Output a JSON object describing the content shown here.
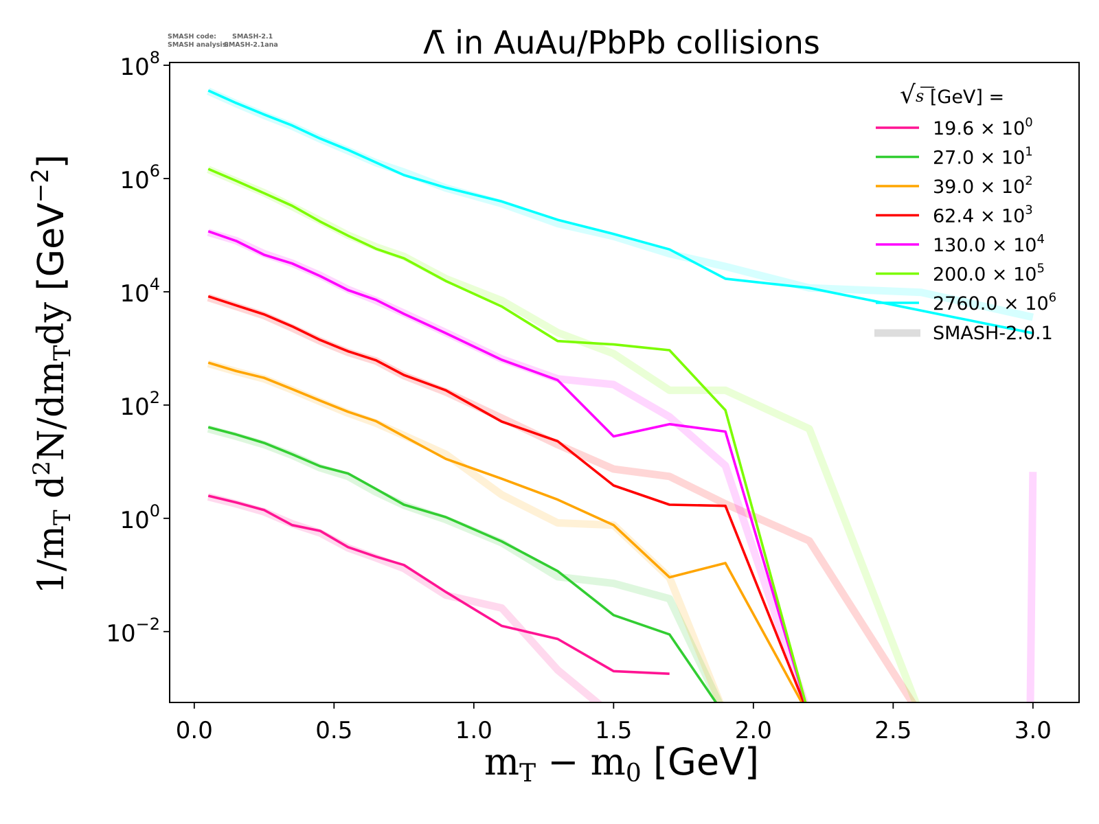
{
  "meta_text": {
    "line1_label": "SMASH code:",
    "line1_value": "SMASH-2.1",
    "line2_label": "SMASH analysis:",
    "line2_value": "SMASH-2.1ana"
  },
  "chart_data": {
    "type": "line",
    "title": "Λ̄ in AuAu/PbPb collisions",
    "xlabel": {
      "m": "m",
      "sub1": "T",
      "minus": " − m",
      "sub2": "0",
      "unit": " [GeV]"
    },
    "ylabel": {
      "p1": "1/m",
      "s1": "T",
      "p2": " d",
      "s2": "2",
      "p3": "N/dm",
      "s3": "T",
      "p4": "dy ",
      "unit1": "[GeV",
      "exp": "−2",
      "unit2": "]"
    },
    "xlim": [
      -0.088,
      3.165
    ],
    "ylim": [
      0.00056,
      112000000
    ],
    "yscale": "log",
    "grid": false,
    "xticks": [
      {
        "value": 0.0,
        "label": "0.0"
      },
      {
        "value": 0.5,
        "label": "0.5"
      },
      {
        "value": 1.0,
        "label": "1.0"
      },
      {
        "value": 1.5,
        "label": "1.5"
      },
      {
        "value": 2.0,
        "label": "2.0"
      },
      {
        "value": 2.5,
        "label": "2.5"
      },
      {
        "value": 3.0,
        "label": "3.0"
      }
    ],
    "yticks": [
      {
        "value": 0.01,
        "base": "10",
        "exp": "−2"
      },
      {
        "value": 1,
        "base": "10",
        "exp": "0"
      },
      {
        "value": 100.0,
        "base": "10",
        "exp": "2"
      },
      {
        "value": 10000.0,
        "base": "10",
        "exp": "4"
      },
      {
        "value": 1000000.0,
        "base": "10",
        "exp": "6"
      },
      {
        "value": 100000000.0,
        "base": "10",
        "exp": "8"
      }
    ],
    "legend": {
      "placement": "top-right",
      "title_sqrt": "√",
      "title_s": "s",
      "title_rest": "  [GeV] =",
      "reference_label": "SMASH-2.0.1",
      "reference_color": "#dddddd"
    },
    "series": [
      {
        "name": "19.6",
        "legend_text": "19.6 × 10",
        "legend_exp": "0",
        "color": "#ff1493",
        "x": [
          0.05,
          0.15,
          0.25,
          0.35,
          0.45,
          0.55,
          0.65,
          0.75,
          0.9,
          1.1,
          1.3,
          1.5,
          1.7
        ],
        "y": [
          2.5,
          1.9,
          1.4,
          0.76,
          0.6,
          0.31,
          0.21,
          0.15,
          0.05,
          0.0126,
          0.0074,
          0.002,
          0.0018
        ],
        "ref_x": [
          0.05,
          0.15,
          0.25,
          0.35,
          0.45,
          0.55,
          0.65,
          0.75,
          0.9,
          1.1,
          1.3,
          1.5
        ],
        "ref_y": [
          2.4,
          1.8,
          1.3,
          0.8,
          0.55,
          0.3,
          0.2,
          0.13,
          0.044,
          0.026,
          0.0021,
          0
        ]
      },
      {
        "name": "27.0",
        "legend_text": "27.0 × 10",
        "legend_exp": "1",
        "color": "#32cd32",
        "x": [
          0.05,
          0.15,
          0.25,
          0.35,
          0.45,
          0.55,
          0.65,
          0.75,
          0.9,
          1.1,
          1.3,
          1.5,
          1.7,
          1.9
        ],
        "y": [
          40.7,
          30.2,
          21.4,
          13.5,
          8.3,
          6.2,
          3.3,
          1.74,
          1.05,
          0.39,
          0.117,
          0.0195,
          0.0089,
          0
        ],
        "ref_x": [
          0.05,
          0.15,
          0.25,
          0.35,
          0.45,
          0.55,
          0.65,
          0.75,
          0.9,
          1.1,
          1.3,
          1.5,
          1.7,
          1.9
        ],
        "ref_y": [
          38,
          28,
          20,
          13,
          7.8,
          5.5,
          2.9,
          1.7,
          0.95,
          0.37,
          0.093,
          0.071,
          0.038,
          0
        ]
      },
      {
        "name": "39.0",
        "legend_text": "39.0 × 10",
        "legend_exp": "2",
        "color": "#ffa500",
        "x": [
          0.05,
          0.15,
          0.25,
          0.35,
          0.45,
          0.55,
          0.65,
          0.75,
          0.9,
          1.1,
          1.3,
          1.5,
          1.7,
          1.9,
          2.2
        ],
        "y": [
          562,
          398,
          302,
          191,
          120,
          76,
          52,
          28,
          11.2,
          5.0,
          2.14,
          0.76,
          0.091,
          0.162,
          0
        ],
        "ref_x": [
          0.05,
          0.15,
          0.25,
          0.35,
          0.45,
          0.55,
          0.65,
          0.75,
          0.9,
          1.1,
          1.3,
          1.5,
          1.7,
          1.9
        ],
        "ref_y": [
          540,
          390,
          290,
          185,
          115,
          72,
          48,
          29,
          13.5,
          2.6,
          0.83,
          0.76,
          0.09,
          0
        ]
      },
      {
        "name": "62.4",
        "legend_text": "62.4 × 10",
        "legend_exp": "3",
        "color": "#ff0000",
        "x": [
          0.05,
          0.15,
          0.25,
          0.35,
          0.45,
          0.55,
          0.65,
          0.75,
          0.9,
          1.1,
          1.3,
          1.5,
          1.7,
          1.9,
          2.2
        ],
        "y": [
          8300,
          5750,
          3980,
          2450,
          1410,
          890,
          617,
          339,
          182,
          51,
          23,
          3.8,
          1.74,
          1.66,
          0
        ],
        "ref_x": [
          0.05,
          0.15,
          0.25,
          0.35,
          0.45,
          0.55,
          0.65,
          0.75,
          0.9,
          1.1,
          1.3,
          1.5,
          1.7,
          1.9,
          2.2,
          2.6
        ],
        "ref_y": [
          7900,
          5500,
          3800,
          2300,
          1350,
          850,
          600,
          330,
          170,
          59,
          20,
          7.4,
          5.5,
          1.8,
          0.4,
          0
        ]
      },
      {
        "name": "130.0",
        "legend_text": "130.0 × 10",
        "legend_exp": "4",
        "color": "#ff00ff",
        "x": [
          0.05,
          0.15,
          0.25,
          0.35,
          0.45,
          0.55,
          0.65,
          0.75,
          0.9,
          1.1,
          1.3,
          1.5,
          1.7,
          1.9,
          2.2
        ],
        "y": [
          117000,
          79000,
          45000,
          31600,
          19000,
          10700,
          7200,
          4070,
          1860,
          630,
          275,
          28,
          46,
          34,
          0
        ],
        "ref_x": [
          0.05,
          0.15,
          0.25,
          0.35,
          0.45,
          0.55,
          0.65,
          0.75,
          0.9,
          1.1,
          1.3,
          1.5,
          1.7,
          1.9,
          2.2,
          2.6,
          2.99,
          3.0
        ],
        "ref_y": [
          112000,
          80000,
          47000,
          32000,
          19500,
          11000,
          7000,
          4200,
          1900,
          650,
          290,
          230,
          62,
          8.5,
          0,
          0,
          0,
          6.6
        ]
      },
      {
        "name": "200.0",
        "legend_text": "200.0 × 10",
        "legend_exp": "5",
        "color": "#7cfc00",
        "x": [
          0.05,
          0.15,
          0.25,
          0.35,
          0.45,
          0.55,
          0.65,
          0.75,
          0.9,
          1.1,
          1.3,
          1.5,
          1.7,
          1.9,
          2.2
        ],
        "y": [
          1480000,
          910000,
          550000,
          330000,
          174000,
          98000,
          57500,
          39000,
          15500,
          5500,
          1350,
          1175,
          930,
          81,
          0
        ],
        "ref_x": [
          0.05,
          0.15,
          0.25,
          0.35,
          0.45,
          0.55,
          0.65,
          0.75,
          0.9,
          1.1,
          1.3,
          1.5,
          1.7,
          1.9,
          2.2,
          2.6
        ],
        "ref_y": [
          1450000,
          900000,
          560000,
          320000,
          180000,
          100000,
          62000,
          42000,
          17000,
          7000,
          1900,
          810,
          182,
          182,
          38,
          0
        ]
      },
      {
        "name": "2760.0",
        "legend_text": "2760.0 × 10",
        "legend_exp": "6",
        "color": "#00ffff",
        "x": [
          0.05,
          0.15,
          0.25,
          0.35,
          0.45,
          0.55,
          0.65,
          0.75,
          0.9,
          1.1,
          1.3,
          1.5,
          1.7,
          1.9,
          2.2,
          3.0
        ],
        "y": [
          35900000,
          21500000,
          13500000,
          8650000,
          5090000,
          3200000,
          1920000,
          1150000,
          690000,
          394000,
          187000,
          105000,
          56000,
          17000,
          11700,
          1860
        ],
        "ref_x": [
          0.05,
          0.15,
          0.25,
          0.35,
          0.45,
          0.55,
          0.65,
          0.75,
          0.9,
          1.1,
          1.3,
          1.5,
          1.7,
          1.9,
          2.2,
          2.6,
          3.0
        ],
        "ref_y": [
          35000000,
          21000000,
          13000000,
          8400000,
          5000000,
          3100000,
          1900000,
          1300000,
          680000,
          360000,
          160000,
          95000,
          47000,
          28000,
          11700,
          9800,
          3550
        ]
      }
    ]
  }
}
